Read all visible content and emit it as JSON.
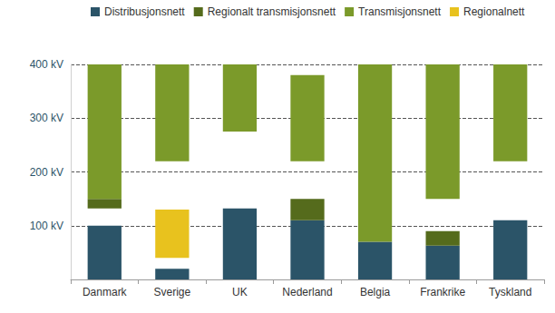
{
  "chart_data": {
    "type": "bar",
    "categories": [
      "Danmark",
      "Sverige",
      "UK",
      "Nederland",
      "Belgia",
      "Frankrike",
      "Tyskland"
    ],
    "series": [
      {
        "name": "Distribusjonsnett",
        "color": "#2b5468",
        "values": [
          [
            0,
            100
          ],
          [
            0,
            20
          ],
          [
            0,
            132
          ],
          [
            0,
            110
          ],
          [
            0,
            70
          ],
          [
            0,
            63
          ],
          [
            0,
            110
          ]
        ]
      },
      {
        "name": "Regionalt transmisjonsnett",
        "color": "#556b1c",
        "values": [
          [
            132,
            150
          ],
          null,
          null,
          [
            110,
            150
          ],
          null,
          [
            63,
            90
          ],
          null
        ]
      },
      {
        "name": "Transmisjonsnett",
        "color": "#7b9a2a",
        "values": [
          [
            150,
            400
          ],
          [
            220,
            400
          ],
          [
            275,
            400
          ],
          [
            220,
            380
          ],
          [
            70,
            400
          ],
          [
            150,
            400
          ],
          [
            220,
            400
          ]
        ]
      },
      {
        "name": "Regionalnett",
        "color": "#e8c21e",
        "values": [
          null,
          [
            40,
            130
          ],
          null,
          null,
          null,
          null,
          null
        ]
      }
    ],
    "ylim": [
      0,
      400
    ],
    "yticks": [
      {
        "value": 100,
        "label": "100 kV"
      },
      {
        "value": 200,
        "label": "200 kV"
      },
      {
        "value": 300,
        "label": "300 kV"
      },
      {
        "value": 400,
        "label": "400 kV"
      }
    ],
    "grid": true,
    "legend": "top"
  }
}
